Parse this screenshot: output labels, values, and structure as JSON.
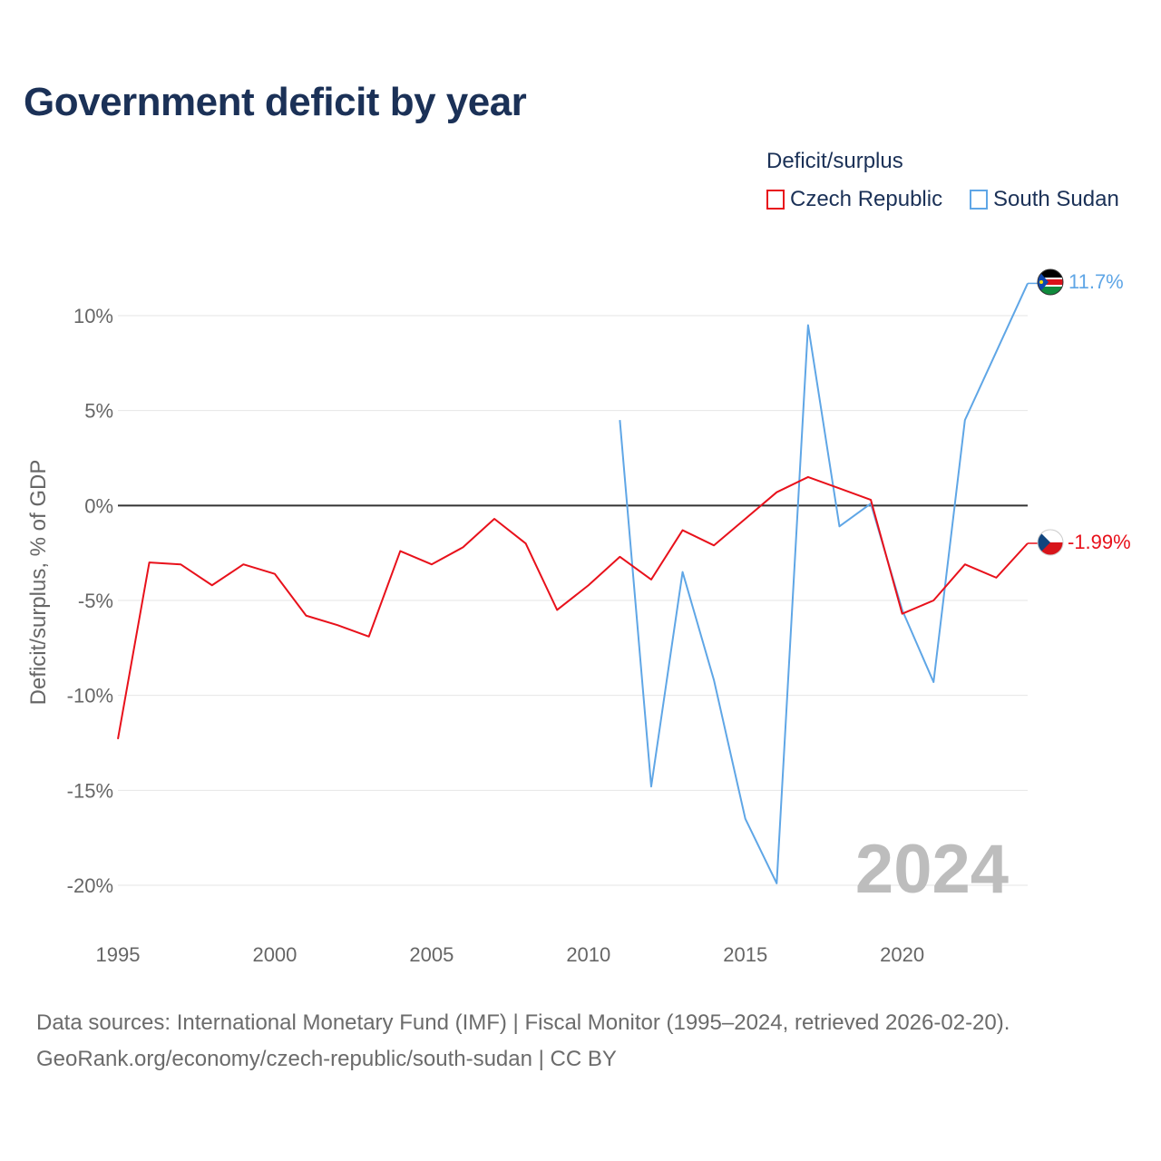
{
  "title": "Government deficit by year",
  "legend": {
    "title": "Deficit/surplus",
    "items": [
      {
        "label": "Czech Republic",
        "color": "#e8111b"
      },
      {
        "label": "South Sudan",
        "color": "#5fa6e6"
      }
    ]
  },
  "sources": {
    "line1": "Data sources: International Monetary Fund (IMF) | Fiscal Monitor (1995–2024, retrieved 2026-02-20).",
    "line2": "GeoRank.org/economy/czech-republic/south-sudan | CC BY"
  },
  "chart_data": {
    "type": "line",
    "title": "Government deficit by year",
    "xlabel": "",
    "ylabel": "Deficit/surplus, % of GDP",
    "xlim": [
      1995,
      2024
    ],
    "ylim": [
      -20,
      10
    ],
    "x_ticks": [
      1995,
      2000,
      2005,
      2010,
      2015,
      2020
    ],
    "x_tick_labels": [
      "1995",
      "2000",
      "2005",
      "2010",
      "2015",
      "2020"
    ],
    "y_ticks": [
      10,
      5,
      0,
      -5,
      -10,
      -15,
      -20
    ],
    "y_tick_labels": [
      "10%",
      "5%",
      "0%",
      "-5%",
      "-10%",
      "-15%",
      "-20%"
    ],
    "grid": true,
    "year_watermark": "2024",
    "series": [
      {
        "name": "Czech Republic",
        "color": "#e8111b",
        "end_label": "-1.99%",
        "x": [
          1995,
          1996,
          1997,
          1998,
          1999,
          2000,
          2001,
          2002,
          2003,
          2004,
          2005,
          2006,
          2007,
          2008,
          2009,
          2010,
          2011,
          2012,
          2013,
          2014,
          2015,
          2016,
          2017,
          2018,
          2019,
          2020,
          2021,
          2022,
          2023,
          2024
        ],
        "values": [
          -12.3,
          -3.0,
          -3.1,
          -4.2,
          -3.1,
          -3.6,
          -5.8,
          -6.3,
          -6.9,
          -2.4,
          -3.1,
          -2.2,
          -0.7,
          -2.0,
          -5.5,
          -4.2,
          -2.7,
          -3.9,
          -1.3,
          -2.1,
          -0.7,
          0.7,
          1.5,
          0.9,
          0.3,
          -5.7,
          -5.0,
          -3.1,
          -3.8,
          -1.99
        ]
      },
      {
        "name": "South Sudan",
        "color": "#5fa6e6",
        "end_label": "11.7%",
        "x": [
          2011,
          2012,
          2013,
          2014,
          2015,
          2016,
          2017,
          2018,
          2019,
          2020,
          2021,
          2022,
          2023,
          2024
        ],
        "values": [
          4.5,
          -14.8,
          -3.5,
          -9.2,
          -16.5,
          -19.9,
          9.5,
          -1.1,
          0.1,
          -5.5,
          -9.3,
          4.5,
          8.1,
          11.7
        ]
      }
    ]
  }
}
